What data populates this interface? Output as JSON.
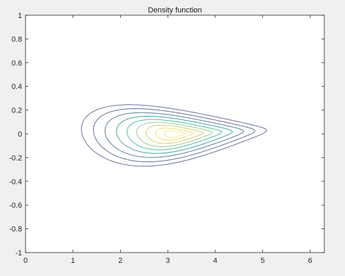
{
  "chart_data": {
    "type": "contour",
    "title": "Density function",
    "xlabel": "",
    "ylabel": "",
    "xlim": [
      0,
      6.3
    ],
    "ylim": [
      -1,
      1
    ],
    "x_ticks": [
      0,
      1,
      2,
      3,
      4,
      5,
      6
    ],
    "y_ticks": [
      -1,
      -0.8,
      -0.6,
      -0.4,
      -0.2,
      0,
      0.2,
      0.4,
      0.6,
      0.8,
      1
    ],
    "grid": false,
    "box": true,
    "colormap": "parula",
    "center": [
      3.15,
      0.0
    ],
    "contour_levels": [
      {
        "level": 1,
        "color": "#6a6f9e",
        "rx": 1.95,
        "ry": 0.225,
        "phi_deg": 7.6,
        "tilt": 0.21
      },
      {
        "level": 2,
        "color": "#646f98",
        "rx": 1.7,
        "ry": 0.195,
        "phi_deg": 7.6,
        "tilt": 0.18
      },
      {
        "level": 3,
        "color": "#5a7f9a",
        "rx": 1.46,
        "ry": 0.165,
        "phi_deg": 7.6,
        "tilt": 0.15
      },
      {
        "level": 4,
        "color": "#47a0a0",
        "rx": 1.22,
        "ry": 0.138,
        "phi_deg": 7.6,
        "tilt": 0.12
      },
      {
        "level": 5,
        "color": "#4fbfa0",
        "rx": 1.0,
        "ry": 0.112,
        "phi_deg": 7.6,
        "tilt": 0.1
      },
      {
        "level": 6,
        "color": "#9dc98e",
        "rx": 0.8,
        "ry": 0.09,
        "phi_deg": 7.6,
        "tilt": 0.08
      },
      {
        "level": 7,
        "color": "#d4cd79",
        "rx": 0.6,
        "ry": 0.068,
        "phi_deg": 7.6,
        "tilt": 0.06
      },
      {
        "level": 8,
        "color": "#f3de74",
        "rx": 0.4,
        "ry": 0.045,
        "phi_deg": 7.6,
        "tilt": 0.04
      },
      {
        "level": 9,
        "color": "#f6ef8a",
        "rx": 0.22,
        "ry": 0.025,
        "phi_deg": 7.6,
        "tilt": 0.02
      }
    ]
  }
}
